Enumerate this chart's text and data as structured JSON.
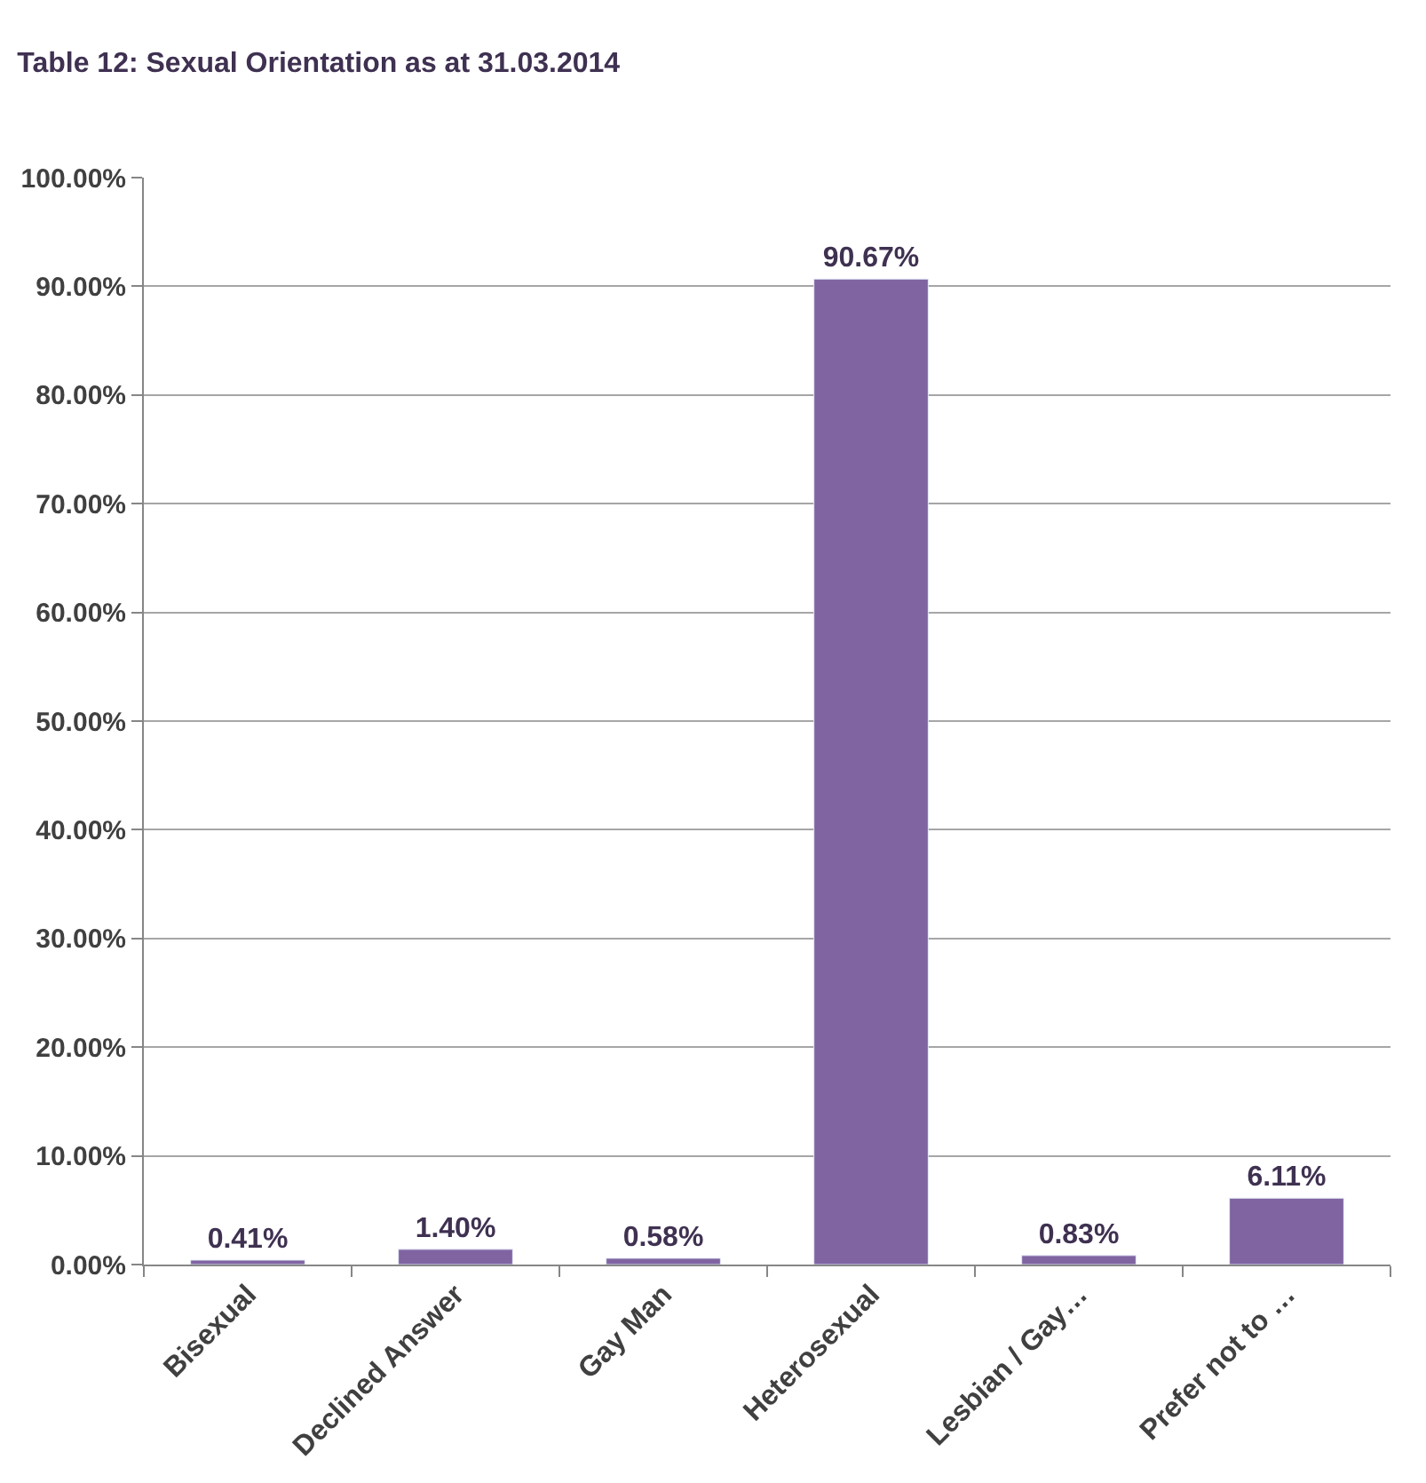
{
  "chart_data": {
    "type": "bar",
    "title": "Table 12: Sexual Orientation as at 31.03.2014",
    "categories": [
      "Bisexual",
      "Declined Answer",
      "Gay Man",
      "Heterosexual",
      "Lesbian / Gay…",
      "Prefer not to …"
    ],
    "values": [
      0.41,
      1.4,
      0.58,
      90.67,
      0.83,
      6.11
    ],
    "value_labels": [
      "0.41%",
      "1.40%",
      "0.58%",
      "90.67%",
      "0.83%",
      "6.11%"
    ],
    "color": "#8064a2",
    "ylim": [
      0,
      100
    ],
    "yticks": [
      {
        "value": 0,
        "label": "0.00%"
      },
      {
        "value": 10,
        "label": "10.00%"
      },
      {
        "value": 20,
        "label": "20.00%"
      },
      {
        "value": 30,
        "label": "30.00%"
      },
      {
        "value": 40,
        "label": "40.00%"
      },
      {
        "value": 50,
        "label": "50.00%"
      },
      {
        "value": 60,
        "label": "60.00%"
      },
      {
        "value": 70,
        "label": "70.00%"
      },
      {
        "value": 80,
        "label": "80.00%"
      },
      {
        "value": 90,
        "label": "90.00%"
      },
      {
        "value": 100,
        "label": "100.00%"
      }
    ],
    "grid": "y",
    "legend": false
  }
}
